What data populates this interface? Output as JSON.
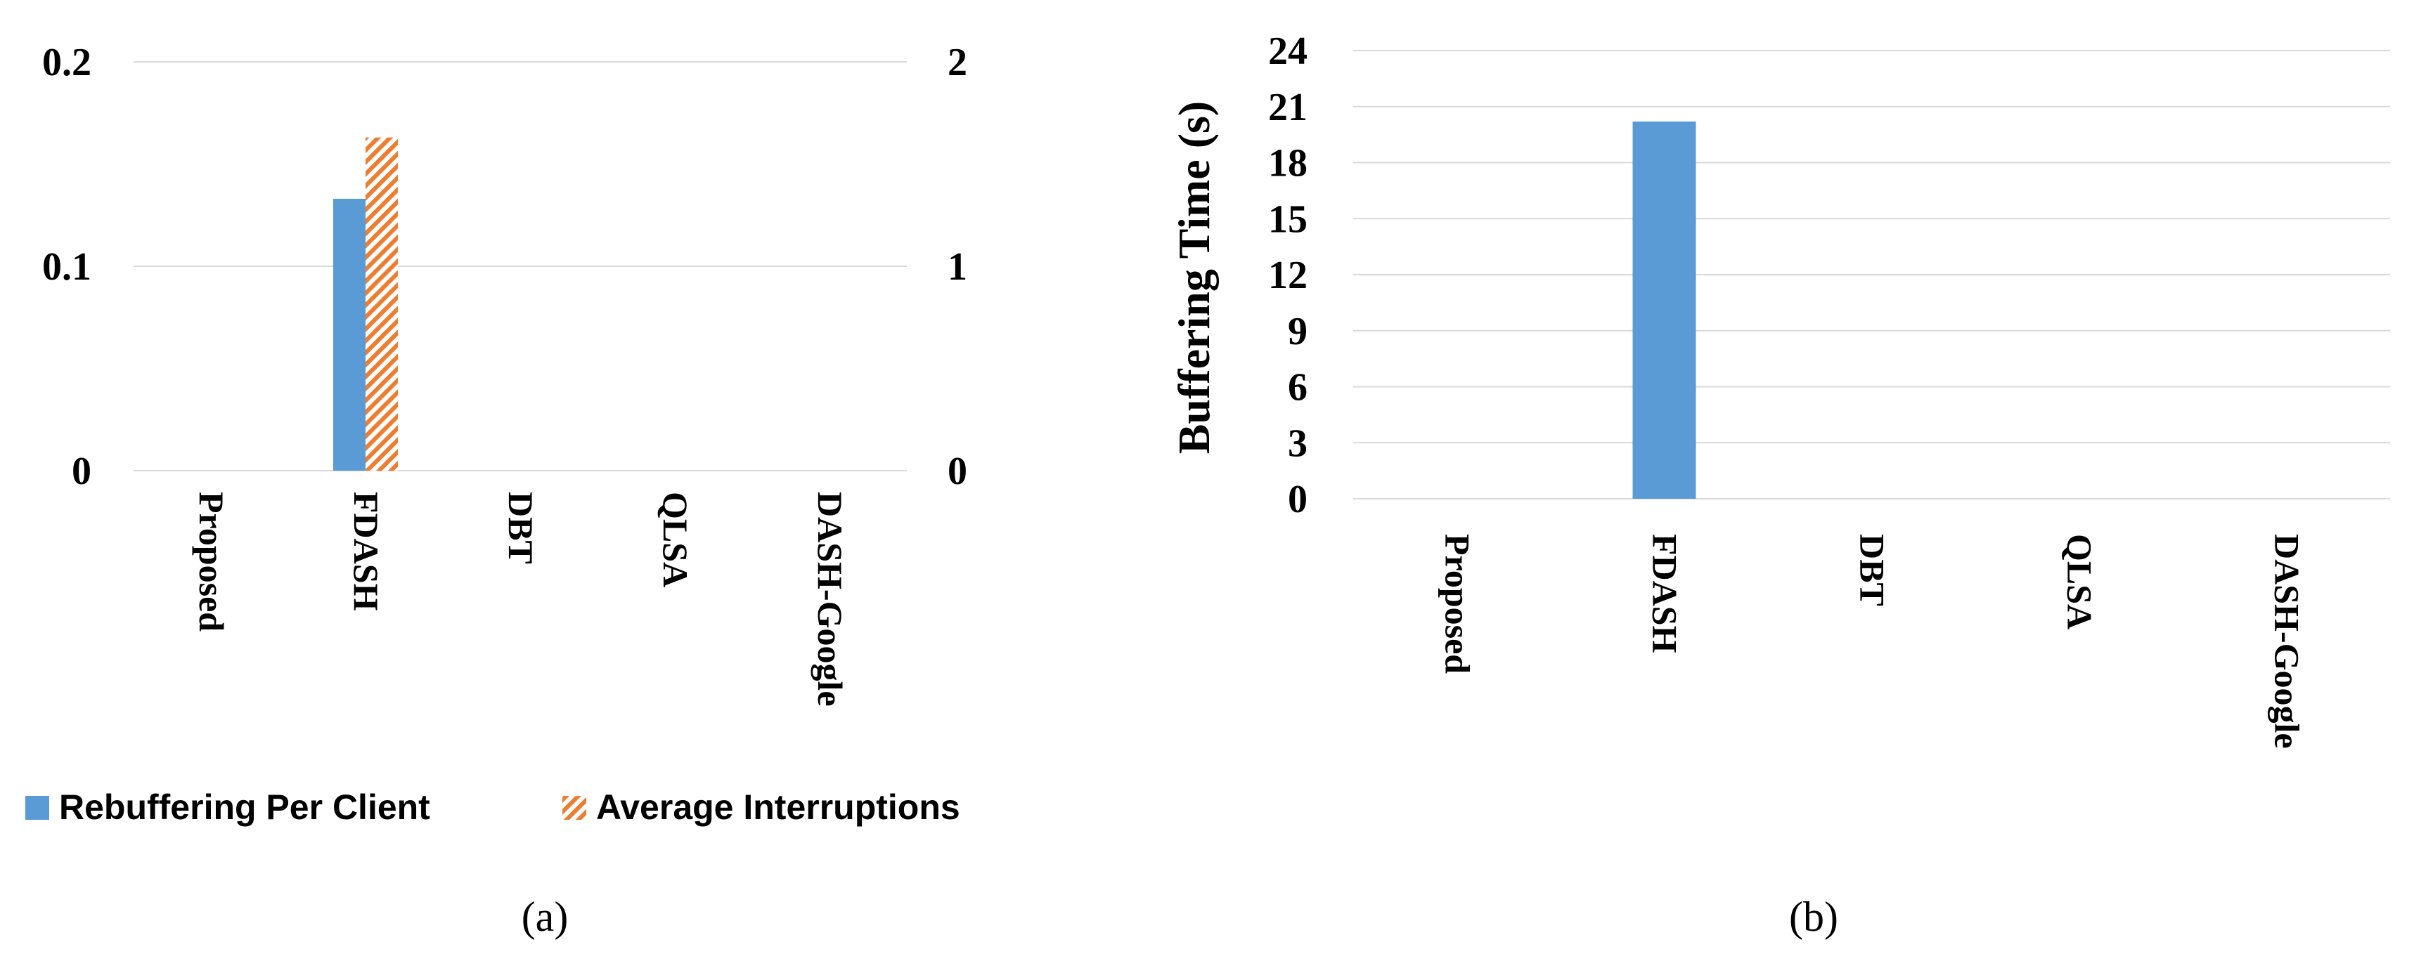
{
  "chart_data": [
    {
      "type": "bar",
      "panel_label": "(a)",
      "categories": [
        "Proposed",
        "FDASH",
        "DBT",
        "QLSA",
        "DASH-Google"
      ],
      "series": [
        {
          "name": "Rebuffering Per Client",
          "axis": "left",
          "values": [
            0,
            0.133,
            0,
            0,
            0
          ],
          "color": "#5b9bd5",
          "pattern": "solid"
        },
        {
          "name": "Average Interruptions",
          "axis": "right",
          "values": [
            0,
            1.63,
            0,
            0,
            0
          ],
          "color": "#ed7d31",
          "pattern": "diagonal-hatch"
        }
      ],
      "ylim_left": [
        0,
        0.2
      ],
      "yticks_left": [
        "0",
        "0.1",
        "0.2"
      ],
      "ylim_right": [
        0,
        2
      ],
      "yticks_right": [
        "0",
        "1",
        "2"
      ],
      "grid": true,
      "legend_position": "bottom"
    },
    {
      "type": "bar",
      "panel_label": "(b)",
      "categories": [
        "Proposed",
        "FDASH",
        "DBT",
        "QLSA",
        "DASH-Google"
      ],
      "series": [
        {
          "values": [
            0,
            20.2,
            0,
            0,
            0
          ],
          "color": "#5b9bd5"
        }
      ],
      "ylabel": "Buffering Time (s)",
      "ylim": [
        0,
        24
      ],
      "yticks": [
        "0",
        "3",
        "6",
        "9",
        "12",
        "15",
        "18",
        "21",
        "24"
      ],
      "grid": true
    }
  ]
}
